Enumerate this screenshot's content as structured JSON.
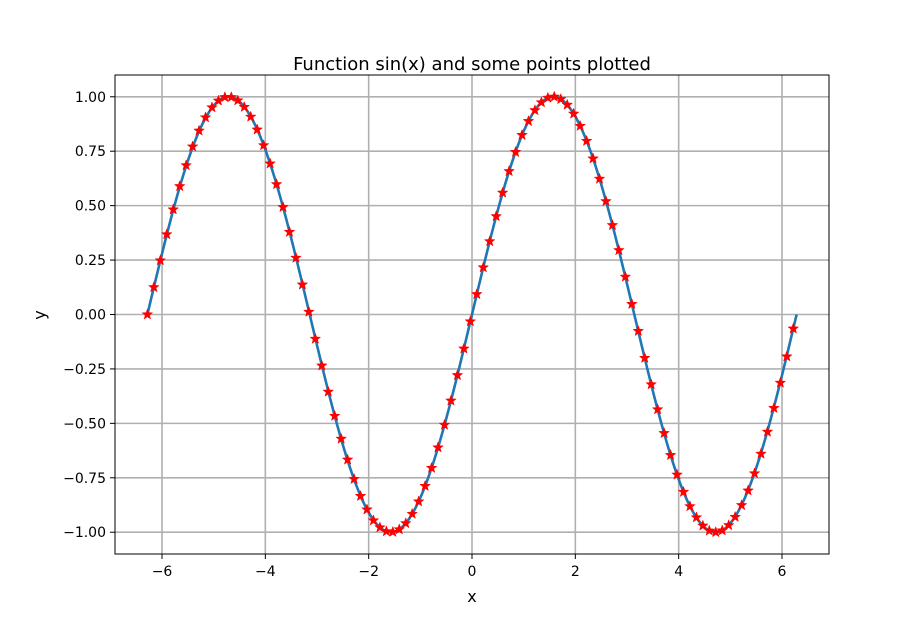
{
  "chart_data": {
    "type": "line",
    "title": "Function sin(x) and some points plotted",
    "xlabel": "x",
    "ylabel": "y",
    "xlim": [
      -6.91,
      6.91
    ],
    "ylim": [
      -1.1,
      1.1
    ],
    "xticks": [
      -6,
      -4,
      -2,
      0,
      2,
      4,
      6
    ],
    "yticks": [
      -1.0,
      -0.75,
      -0.5,
      -0.25,
      0.0,
      0.25,
      0.5,
      0.75,
      1.0
    ],
    "xtick_labels": [
      "−6",
      "−4",
      "−2",
      "0",
      "2",
      "4",
      "6"
    ],
    "ytick_labels": [
      "−1.00",
      "−0.75",
      "−0.50",
      "−0.25",
      "0.00",
      "0.25",
      "0.50",
      "0.75",
      "1.00"
    ],
    "grid": true,
    "series": [
      {
        "kind": "line",
        "function": "sin(x)",
        "x_range": [
          -6.2832,
          6.2832
        ],
        "color": "#1f77b4"
      },
      {
        "kind": "scatter",
        "marker": "star",
        "color": "#ff0000",
        "x": [
          -6.2832,
          -6.1582,
          -6.0332,
          -5.9081,
          -5.7831,
          -5.6581,
          -5.5331,
          -5.4081,
          -5.283,
          -5.158,
          -5.033,
          -4.908,
          -4.783,
          -4.658,
          -4.5329,
          -4.4079,
          -4.2829,
          -4.1579,
          -4.0329,
          -3.9078,
          -3.7828,
          -3.6578,
          -3.5328,
          -3.4078,
          -3.2828,
          -3.1577,
          -3.0327,
          -2.9077,
          -2.7827,
          -2.6577,
          -2.5326,
          -2.4076,
          -2.2826,
          -2.1576,
          -2.0326,
          -1.9075,
          -1.7825,
          -1.6575,
          -1.5325,
          -1.4075,
          -1.2825,
          -1.1574,
          -1.0324,
          -0.9074,
          -0.7824,
          -0.6574,
          -0.5323,
          -0.4073,
          -0.2823,
          -0.1573,
          -0.0323,
          0.0928,
          0.2178,
          0.3428,
          0.4678,
          0.5928,
          0.7178,
          0.8429,
          0.9679,
          1.0929,
          1.2179,
          1.3429,
          1.468,
          1.593,
          1.718,
          1.843,
          1.968,
          2.0931,
          2.2181,
          2.3431,
          2.4681,
          2.5931,
          2.7181,
          2.8432,
          2.9682,
          3.0932,
          3.2182,
          3.3432,
          3.4683,
          3.5933,
          3.7183,
          3.8433,
          3.9683,
          4.0933,
          4.2184,
          4.3434,
          4.4684,
          4.5934,
          4.7184,
          4.8435,
          4.9685,
          5.0935,
          5.2185,
          5.3435,
          5.4686,
          5.5936,
          5.7186,
          5.8436,
          5.9686,
          6.0936,
          6.2187
        ],
        "y": [
          0.0,
          0.125,
          0.248,
          0.368,
          0.482,
          0.589,
          0.685,
          0.771,
          0.844,
          0.905,
          0.951,
          0.982,
          0.998,
          0.998,
          0.983,
          0.953,
          0.908,
          0.849,
          0.777,
          0.693,
          0.598,
          0.493,
          0.379,
          0.26,
          0.137,
          0.012,
          -0.112,
          -0.235,
          -0.355,
          -0.466,
          -0.571,
          -0.667,
          -0.756,
          -0.834,
          -0.896,
          -0.946,
          -0.978,
          -0.996,
          -0.999,
          -0.987,
          -0.959,
          -0.916,
          -0.859,
          -0.788,
          -0.705,
          -0.611,
          -0.507,
          -0.396,
          -0.279,
          -0.157,
          -0.032,
          0.093,
          0.216,
          0.336,
          0.451,
          0.559,
          0.658,
          0.746,
          0.824,
          0.888,
          0.938,
          0.974,
          0.995,
          1.0,
          0.989,
          0.963,
          0.922,
          0.866,
          0.797,
          0.716,
          0.623,
          0.52,
          0.41,
          0.295,
          0.173,
          0.048,
          -0.076,
          -0.2,
          -0.321,
          -0.436,
          -0.545,
          -0.646,
          -0.736,
          -0.815,
          -0.881,
          -0.932,
          -0.97,
          -0.993,
          -1.0,
          -0.992,
          -0.968,
          -0.93,
          -0.876,
          -0.809,
          -0.73,
          -0.64,
          -0.539,
          -0.43,
          -0.314,
          -0.193,
          -0.065
        ]
      }
    ]
  }
}
